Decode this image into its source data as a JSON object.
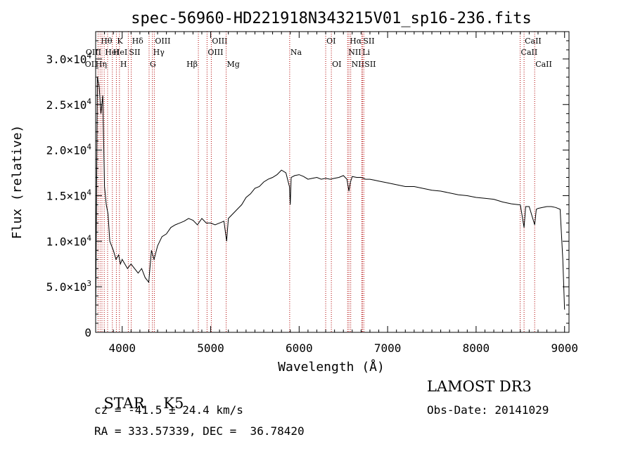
{
  "chart_data": {
    "type": "line",
    "title": "spec-56960-HD221918N343215V01_sp16-236.fits",
    "xlabel": "Wavelength (Å)",
    "ylabel": "Flux (relative)",
    "xlim": [
      3700,
      9050
    ],
    "ylim": [
      0,
      33000
    ],
    "x_ticks": [
      4000,
      5000,
      6000,
      7000,
      8000,
      9000
    ],
    "x_tick_labels": [
      "4000",
      "5000",
      "6000",
      "7000",
      "8000",
      "9000"
    ],
    "y_ticks": [
      0,
      5000,
      10000,
      15000,
      20000,
      25000,
      30000
    ],
    "y_tick_labels": [
      {
        "mant": "0",
        "exp": ""
      },
      {
        "mant": "5.0×10",
        "exp": "3"
      },
      {
        "mant": "1.0×10",
        "exp": "4"
      },
      {
        "mant": "1.5×10",
        "exp": "4"
      },
      {
        "mant": "2.0×10",
        "exp": "4"
      },
      {
        "mant": "2.5×10",
        "exp": "4"
      },
      {
        "mant": "3.0×10",
        "exp": "4"
      }
    ],
    "grid": false,
    "series": [
      {
        "x": [
          3700,
          3720,
          3740,
          3760,
          3780,
          3800,
          3820,
          3840,
          3860,
          3880,
          3900,
          3930,
          3960,
          3980,
          4000,
          4030,
          4060,
          4100,
          4140,
          4180,
          4220,
          4260,
          4300,
          4330,
          4360,
          4400,
          4450,
          4500,
          4550,
          4600,
          4650,
          4700,
          4750,
          4800,
          4850,
          4900,
          4950,
          5000,
          5050,
          5100,
          5150,
          5180,
          5200,
          5250,
          5300,
          5350,
          5400,
          5450,
          5500,
          5550,
          5600,
          5650,
          5700,
          5750,
          5800,
          5850,
          5890,
          5900,
          5910,
          5950,
          6000,
          6050,
          6100,
          6150,
          6200,
          6250,
          6300,
          6350,
          6400,
          6450,
          6500,
          6540,
          6563,
          6580,
          6600,
          6650,
          6700,
          6750,
          6800,
          6850,
          6900,
          6950,
          7000,
          7100,
          7200,
          7300,
          7400,
          7500,
          7600,
          7700,
          7800,
          7900,
          8000,
          8100,
          8200,
          8300,
          8400,
          8480,
          8500,
          8542,
          8560,
          8600,
          8662,
          8680,
          8700,
          8750,
          8800,
          8850,
          8900,
          8950,
          8980,
          9000
        ],
        "y": [
          1000,
          28000,
          27000,
          24000,
          26000,
          16000,
          14000,
          13000,
          10000,
          9500,
          9000,
          8000,
          8500,
          7500,
          8000,
          7500,
          7000,
          7500,
          7000,
          6500,
          7000,
          6000,
          5500,
          9000,
          8000,
          9500,
          10500,
          10800,
          11500,
          11800,
          12000,
          12200,
          12500,
          12300,
          11800,
          12500,
          12000,
          12000,
          11800,
          12000,
          12200,
          10000,
          12500,
          13000,
          13500,
          14000,
          14800,
          15200,
          15800,
          16000,
          16500,
          16800,
          17000,
          17300,
          17800,
          17500,
          16000,
          14000,
          17000,
          17200,
          17300,
          17100,
          16800,
          16900,
          17000,
          16800,
          16900,
          16800,
          16900,
          17000,
          17200,
          16800,
          15500,
          16500,
          17100,
          17000,
          17000,
          16800,
          16800,
          16700,
          16600,
          16500,
          16400,
          16200,
          16000,
          16000,
          15800,
          15600,
          15500,
          15300,
          15100,
          15000,
          14800,
          14700,
          14600,
          14300,
          14100,
          14000,
          14000,
          11500,
          13800,
          13800,
          11800,
          13500,
          13600,
          13700,
          13800,
          13800,
          13700,
          13500,
          8000,
          2500
        ]
      }
    ],
    "lines": [
      {
        "w": 3727,
        "label": "OII",
        "row": 3,
        "pos": "left"
      },
      {
        "w": 3750,
        "label": "Hθ",
        "row": 1,
        "pos": "right"
      },
      {
        "w": 3771,
        "label": "OIII",
        "row": 2,
        "pos": "left"
      },
      {
        "w": 3797,
        "label": "HeI",
        "row": 2,
        "pos": "right"
      },
      {
        "w": 3835,
        "label": "Hη",
        "row": 3,
        "pos": "left"
      },
      {
        "w": 3889,
        "label": "HeI",
        "row": 2,
        "pos": "right"
      },
      {
        "w": 3934,
        "label": "K",
        "row": 1,
        "pos": "right"
      },
      {
        "w": 3969,
        "label": "H",
        "row": 3,
        "pos": "right"
      },
      {
        "w": 4069,
        "label": "SII",
        "row": 2,
        "pos": "right"
      },
      {
        "w": 4102,
        "label": "Hδ",
        "row": 1,
        "pos": "right"
      },
      {
        "w": 4304,
        "label": "G",
        "row": 3,
        "pos": "right"
      },
      {
        "w": 4341,
        "label": "Hγ",
        "row": 2,
        "pos": "right"
      },
      {
        "w": 4363,
        "label": "OIII",
        "row": 1,
        "pos": "right"
      },
      {
        "w": 4861,
        "label": "Hβ",
        "row": 3,
        "pos": "left"
      },
      {
        "w": 4959,
        "label": "OIII",
        "row": 2,
        "pos": "right"
      },
      {
        "w": 5007,
        "label": "OIII",
        "row": 1,
        "pos": "right"
      },
      {
        "w": 5175,
        "label": "Mg",
        "row": 3,
        "pos": "right"
      },
      {
        "w": 5893,
        "label": "Na",
        "row": 2,
        "pos": "right"
      },
      {
        "w": 6300,
        "label": "OI",
        "row": 1,
        "pos": "right"
      },
      {
        "w": 6364,
        "label": "OI",
        "row": 3,
        "pos": "right"
      },
      {
        "w": 6548,
        "label": "NII",
        "row": 2,
        "pos": "right"
      },
      {
        "w": 6563,
        "label": "Hα",
        "row": 1,
        "pos": "right"
      },
      {
        "w": 6583,
        "label": "NII",
        "row": 3,
        "pos": "right"
      },
      {
        "w": 6707,
        "label": "Li",
        "row": 2,
        "pos": "right"
      },
      {
        "w": 6716,
        "label": "SII",
        "row": 1,
        "pos": "right"
      },
      {
        "w": 6731,
        "label": "SII",
        "row": 3,
        "pos": "right"
      },
      {
        "w": 8498,
        "label": "CaII",
        "row": 2,
        "pos": "right"
      },
      {
        "w": 8542,
        "label": "CaII",
        "row": 1,
        "pos": "right"
      },
      {
        "w": 8662,
        "label": "CaII",
        "row": 3,
        "pos": "right"
      }
    ]
  },
  "info": {
    "class_label": "STAR",
    "subclass": "K5",
    "cz": "cz = -41.5 ± 24.4 km/s",
    "radec": "RA = 333.57339, DEC =  36.78420",
    "survey": "LAMOST DR3",
    "obs_date": "Obs-Date: 20141029"
  }
}
